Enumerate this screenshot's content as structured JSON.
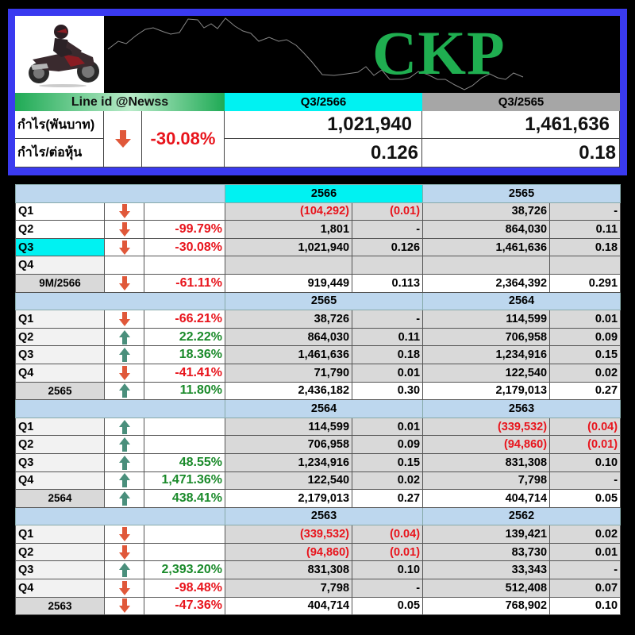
{
  "header": {
    "ticker": "CKP",
    "line_id_label": "Line id @Newss",
    "current_period": "Q3/2566",
    "previous_period": "Q3/2565",
    "profit_label": "กำไร(พันบาท)",
    "eps_label": "กำไร/ต่อหุ้น",
    "change_direction": "down-arrow-icon",
    "change_pct": "-30.08%",
    "current_profit": "1,021,940",
    "previous_profit": "1,461,636",
    "current_eps": "0.126",
    "previous_eps": "0.18"
  },
  "colors": {
    "frame": "#3a3af0",
    "ticker": "#1fae50",
    "current_highlight": "#00f2f2",
    "year_header": "#bdd7ee",
    "value_cell": "#d9d9d9",
    "negative": "#e8141c",
    "positive": "#1a8a2a",
    "arrow_down": "#e0583a",
    "arrow_up": "#4a8f7c"
  },
  "sections": [
    {
      "year_a": "2566",
      "year_b": "2565",
      "rows": [
        {
          "label": "Q1",
          "dir": "down",
          "pct": "",
          "a": "(104,292)",
          "a_eps": "(0.01)",
          "b": "38,726",
          "b_eps": "-"
        },
        {
          "label": "Q2",
          "dir": "down",
          "pct": "-99.79%",
          "a": "1,801",
          "a_eps": "-",
          "b": "864,030",
          "b_eps": "0.11"
        },
        {
          "label": "Q3",
          "dir": "down",
          "pct": "-30.08%",
          "a": "1,021,940",
          "a_eps": "0.126",
          "b": "1,461,636",
          "b_eps": "0.18"
        },
        {
          "label": "Q4",
          "dir": "",
          "pct": "",
          "a": "",
          "a_eps": "",
          "b": "",
          "b_eps": ""
        },
        {
          "label": "9M/2566",
          "dir": "down",
          "pct": "-61.11%",
          "a": "919,449",
          "a_eps": "0.113",
          "b": "2,364,392",
          "b_eps": "0.291"
        }
      ]
    },
    {
      "year_a": "2565",
      "year_b": "2564",
      "rows": [
        {
          "label": "Q1",
          "dir": "down",
          "pct": "-66.21%",
          "a": "38,726",
          "a_eps": "-",
          "b": "114,599",
          "b_eps": "0.01"
        },
        {
          "label": "Q2",
          "dir": "up",
          "pct": "22.22%",
          "a": "864,030",
          "a_eps": "0.11",
          "b": "706,958",
          "b_eps": "0.09"
        },
        {
          "label": "Q3",
          "dir": "up",
          "pct": "18.36%",
          "a": "1,461,636",
          "a_eps": "0.18",
          "b": "1,234,916",
          "b_eps": "0.15"
        },
        {
          "label": "Q4",
          "dir": "down",
          "pct": "-41.41%",
          "a": "71,790",
          "a_eps": "0.01",
          "b": "122,540",
          "b_eps": "0.02"
        },
        {
          "label": "2565",
          "dir": "up",
          "pct": "11.80%",
          "a": "2,436,182",
          "a_eps": "0.30",
          "b": "2,179,013",
          "b_eps": "0.27"
        }
      ]
    },
    {
      "year_a": "2564",
      "year_b": "2563",
      "rows": [
        {
          "label": "Q1",
          "dir": "up",
          "pct": "",
          "a": "114,599",
          "a_eps": "0.01",
          "b": "(339,532)",
          "b_eps": "(0.04)"
        },
        {
          "label": "Q2",
          "dir": "up",
          "pct": "",
          "a": "706,958",
          "a_eps": "0.09",
          "b": "(94,860)",
          "b_eps": "(0.01)"
        },
        {
          "label": "Q3",
          "dir": "up",
          "pct": "48.55%",
          "a": "1,234,916",
          "a_eps": "0.15",
          "b": "831,308",
          "b_eps": "0.10"
        },
        {
          "label": "Q4",
          "dir": "up",
          "pct": "1,471.36%",
          "a": "122,540",
          "a_eps": "0.02",
          "b": "7,798",
          "b_eps": "-"
        },
        {
          "label": "2564",
          "dir": "up",
          "pct": "438.41%",
          "a": "2,179,013",
          "a_eps": "0.27",
          "b": "404,714",
          "b_eps": "0.05"
        }
      ]
    },
    {
      "year_a": "2563",
      "year_b": "2562",
      "rows": [
        {
          "label": "Q1",
          "dir": "down",
          "pct": "",
          "a": "(339,532)",
          "a_eps": "(0.04)",
          "b": "139,421",
          "b_eps": "0.02"
        },
        {
          "label": "Q2",
          "dir": "down",
          "pct": "",
          "a": "(94,860)",
          "a_eps": "(0.01)",
          "b": "83,730",
          "b_eps": "0.01"
        },
        {
          "label": "Q3",
          "dir": "up",
          "pct": "2,393.20%",
          "a": "831,308",
          "a_eps": "0.10",
          "b": "33,343",
          "b_eps": "-"
        },
        {
          "label": "Q4",
          "dir": "down",
          "pct": "-98.48%",
          "a": "7,798",
          "a_eps": "-",
          "b": "512,408",
          "b_eps": "0.07"
        },
        {
          "label": "2563",
          "dir": "down",
          "pct": "-47.36%",
          "a": "404,714",
          "a_eps": "0.05",
          "b": "768,902",
          "b_eps": "0.10"
        }
      ]
    }
  ]
}
